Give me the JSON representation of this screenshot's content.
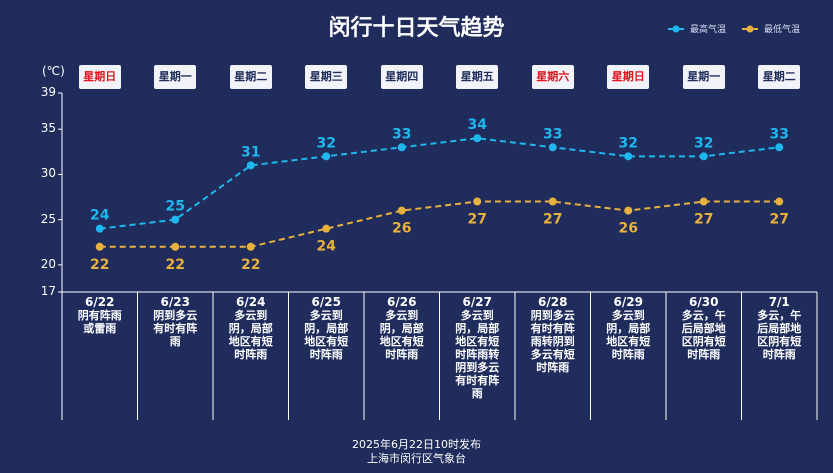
{
  "title": "闵行十日天气趋势",
  "legend": [
    {
      "name": "最高气温",
      "color": "#1eb8ef"
    },
    {
      "name": "最低气温",
      "color": "#e8b03c"
    }
  ],
  "unit_label": "(℃)",
  "footer": {
    "line1": "2025年6月22日10时发布",
    "line2": "上海市闵行区气象台"
  },
  "days": [
    {
      "weekday": "星期日",
      "weekend": true,
      "date": "6/22",
      "weather": "阴有阵雨或雷雨"
    },
    {
      "weekday": "星期一",
      "weekend": false,
      "date": "6/23",
      "weather": "阴到多云有时有阵雨"
    },
    {
      "weekday": "星期二",
      "weekend": false,
      "date": "6/24",
      "weather": "多云到阴，局部地区有短时阵雨"
    },
    {
      "weekday": "星期三",
      "weekend": false,
      "date": "6/25",
      "weather": "多云到阴，局部地区有短时阵雨"
    },
    {
      "weekday": "星期四",
      "weekend": false,
      "date": "6/26",
      "weather": "多云到阴，局部地区有短时阵雨"
    },
    {
      "weekday": "星期五",
      "weekend": false,
      "date": "6/27",
      "weather": "多云到阴，局部地区有短时阵雨转阴到多云有时有阵雨"
    },
    {
      "weekday": "星期六",
      "weekend": true,
      "date": "6/28",
      "weather": "阴到多云有时有阵雨转阴到多云有短时阵雨"
    },
    {
      "weekday": "星期日",
      "weekend": true,
      "date": "6/29",
      "weather": "多云到阴，局部地区有短时阵雨"
    },
    {
      "weekday": "星期一",
      "weekend": false,
      "date": "6/30",
      "weather": "多云，午后局部地区阴有短时阵雨"
    },
    {
      "weekday": "星期二",
      "weekend": false,
      "date": "7/1",
      "weather": "多云，午后局部地区阴有短时阵雨"
    }
  ],
  "chart_data": {
    "type": "line",
    "categories": [
      "6/22",
      "6/23",
      "6/24",
      "6/25",
      "6/26",
      "6/27",
      "6/28",
      "6/29",
      "6/30",
      "7/1"
    ],
    "ylim": [
      17,
      39
    ],
    "yticks": [
      17,
      20,
      25,
      30,
      35,
      39
    ],
    "ylabel": "(℃)",
    "series": [
      {
        "name": "最高气温",
        "color": "#1eb8ef",
        "values": [
          24,
          25,
          31,
          32,
          33,
          34,
          33,
          32,
          32,
          33
        ]
      },
      {
        "name": "最低气温",
        "color": "#e8b03c",
        "values": [
          22,
          22,
          22,
          24,
          26,
          27,
          27,
          26,
          27,
          27
        ]
      }
    ]
  }
}
